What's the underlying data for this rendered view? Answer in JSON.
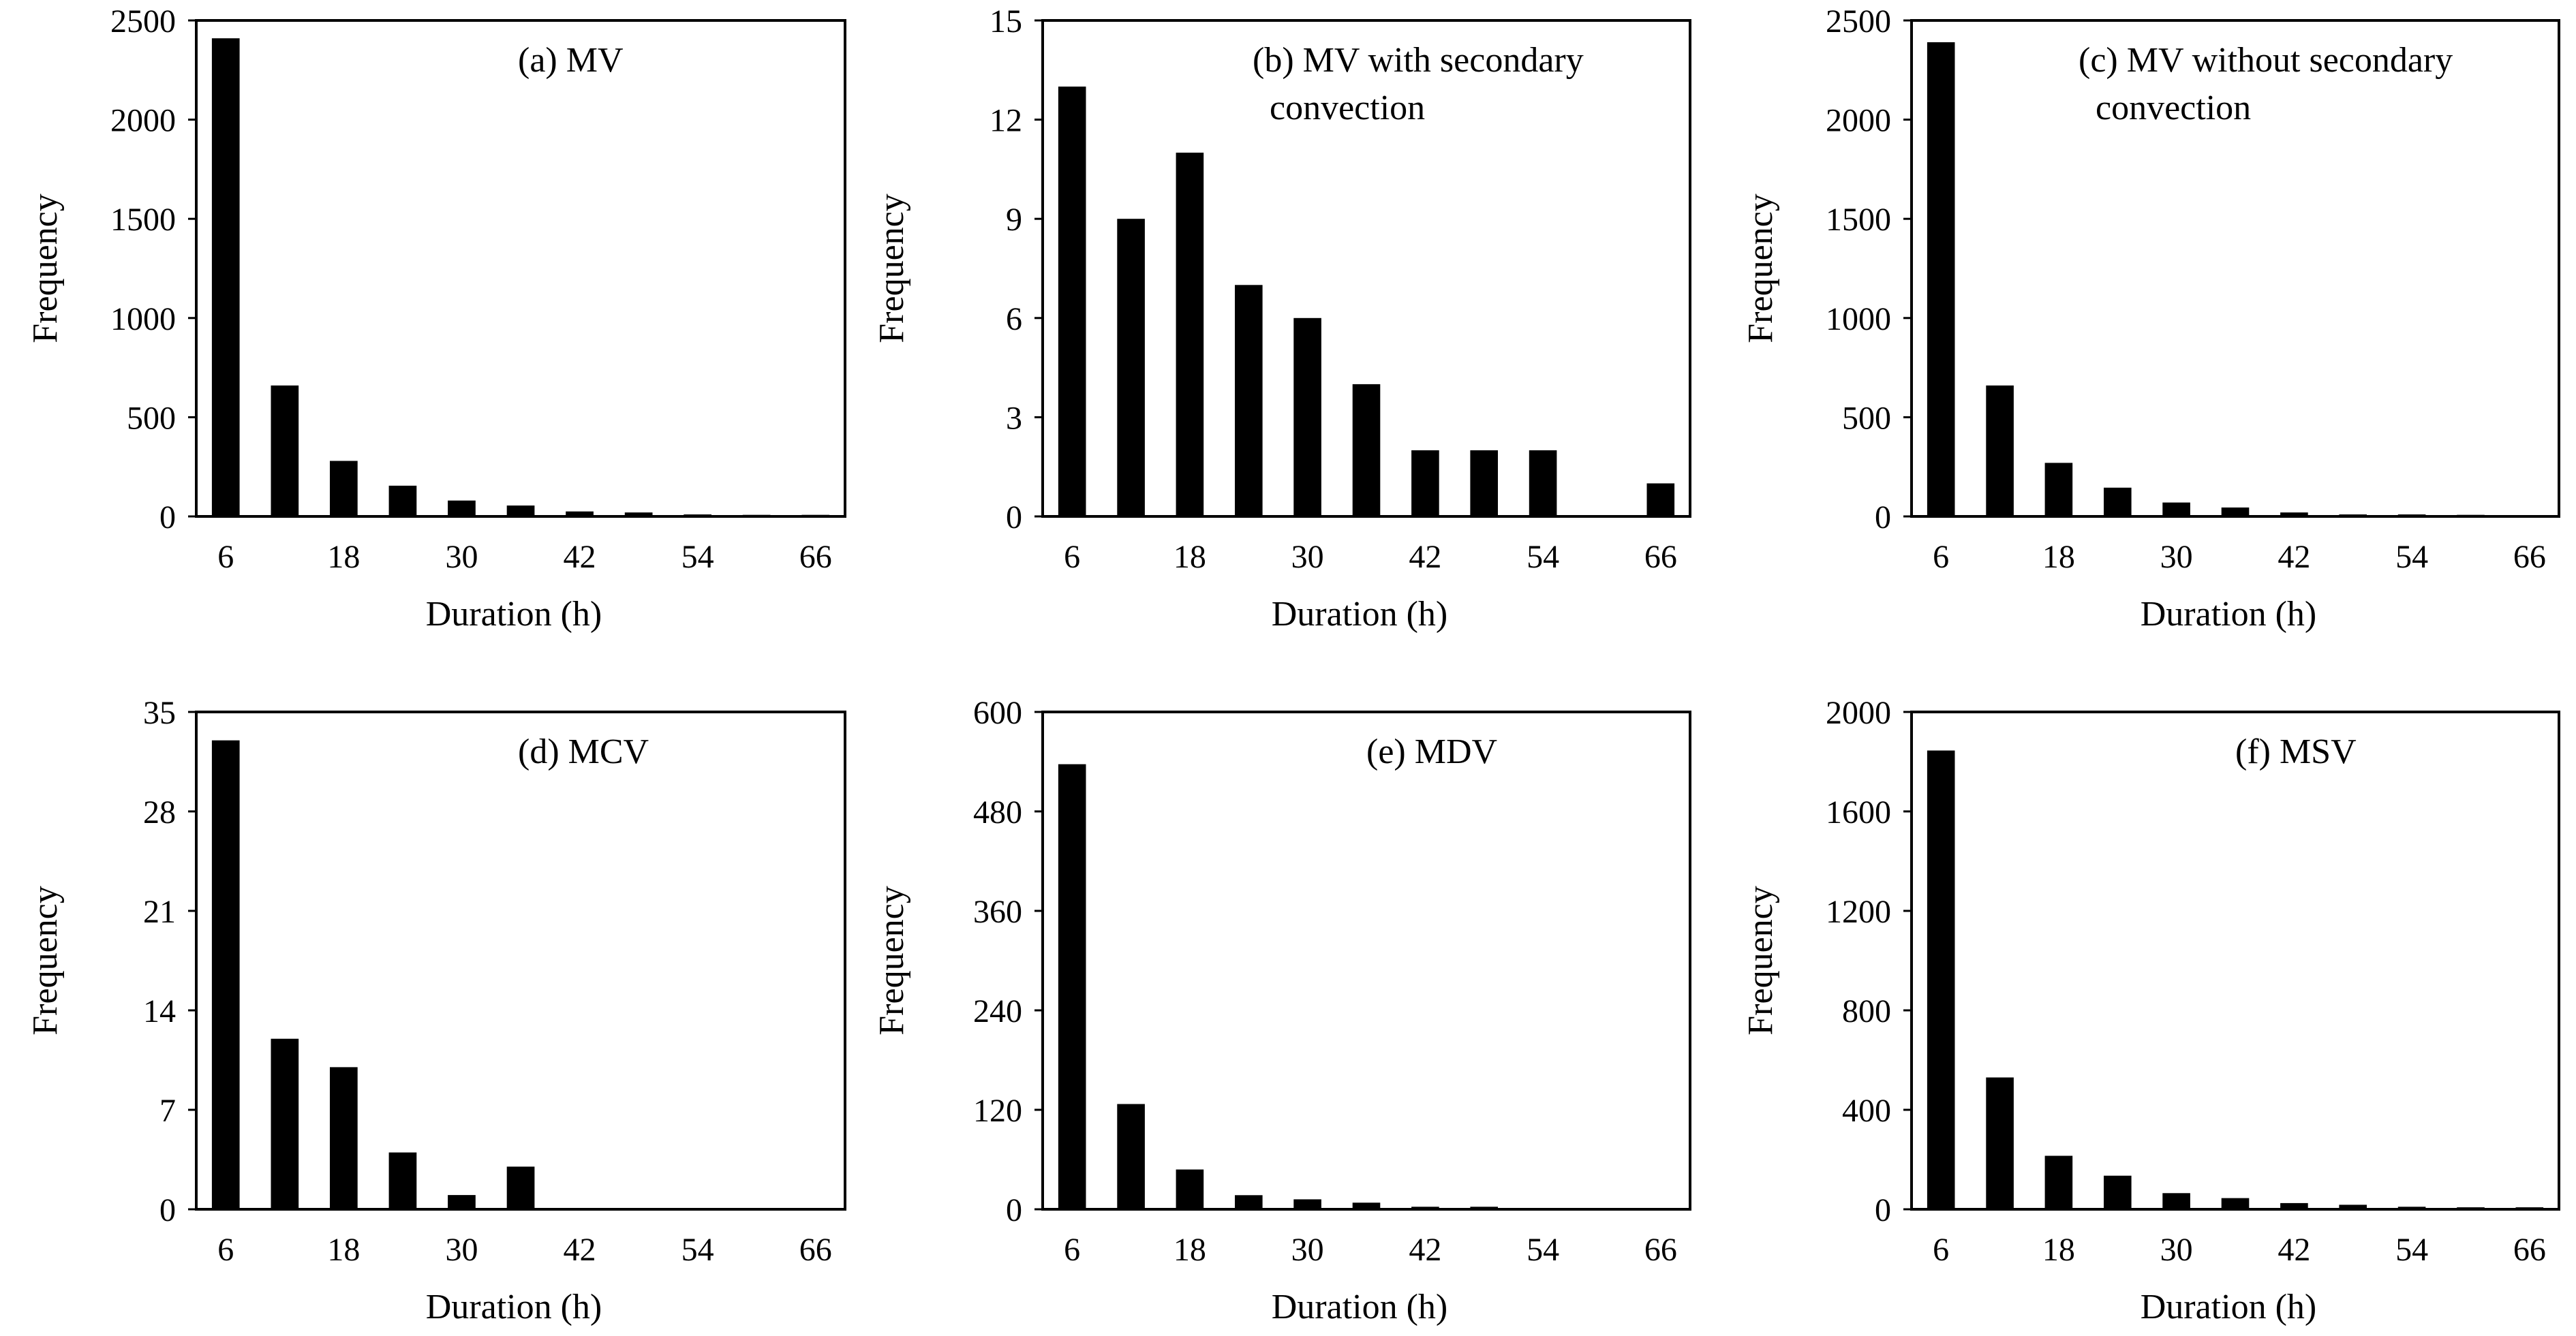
{
  "figure": {
    "background": "#ffffff",
    "bar_color": "#000000"
  },
  "chart_data": [
    {
      "id": "a",
      "type": "bar",
      "title_lines": [
        "(a) MV"
      ],
      "xlabel": "Duration (h)",
      "ylabel": "Frequency",
      "ylim": [
        0,
        2500
      ],
      "yticks": [
        0,
        500,
        1000,
        1500,
        2000,
        2500
      ],
      "categories": [
        6,
        12,
        18,
        24,
        30,
        36,
        42,
        48,
        54,
        60,
        66
      ],
      "xtick_labels": [
        6,
        18,
        30,
        42,
        54,
        66
      ],
      "values": [
        2410,
        660,
        280,
        155,
        80,
        55,
        25,
        20,
        10,
        8,
        8
      ]
    },
    {
      "id": "b",
      "type": "bar",
      "title_lines": [
        "(b) MV with secondary",
        "convection"
      ],
      "xlabel": "Duration (h)",
      "ylabel": "Frequency",
      "ylim": [
        0,
        15
      ],
      "yticks": [
        0,
        3,
        6,
        9,
        12,
        15
      ],
      "categories": [
        6,
        12,
        18,
        24,
        30,
        36,
        42,
        48,
        54,
        60,
        66
      ],
      "xtick_labels": [
        6,
        18,
        30,
        42,
        54,
        66
      ],
      "values": [
        13,
        9,
        11,
        7,
        6,
        4,
        2,
        2,
        2,
        0,
        1
      ]
    },
    {
      "id": "c",
      "type": "bar",
      "title_lines": [
        "(c) MV without secondary",
        "convection"
      ],
      "xlabel": "Duration (h)",
      "ylabel": "Frequency",
      "ylim": [
        0,
        2500
      ],
      "yticks": [
        0,
        500,
        1000,
        1500,
        2000,
        2500
      ],
      "categories": [
        6,
        12,
        18,
        24,
        30,
        36,
        42,
        48,
        54,
        60,
        66
      ],
      "xtick_labels": [
        6,
        18,
        30,
        42,
        54,
        66
      ],
      "values": [
        2390,
        660,
        270,
        145,
        70,
        45,
        20,
        10,
        10,
        8,
        0
      ]
    },
    {
      "id": "d",
      "type": "bar",
      "title_lines": [
        "(d) MCV"
      ],
      "xlabel": "Duration (h)",
      "ylabel": "Frequency",
      "ylim": [
        0,
        35
      ],
      "yticks": [
        0,
        7,
        14,
        21,
        28,
        35
      ],
      "categories": [
        6,
        12,
        18,
        24,
        30,
        36,
        42,
        48,
        54,
        60,
        66
      ],
      "xtick_labels": [
        6,
        18,
        30,
        42,
        54,
        66
      ],
      "values": [
        33,
        12,
        10,
        4,
        1,
        3,
        0,
        0,
        0,
        0,
        0
      ]
    },
    {
      "id": "e",
      "type": "bar",
      "title_lines": [
        "(e) MDV"
      ],
      "xlabel": "Duration (h)",
      "ylabel": "Frequency",
      "ylim": [
        0,
        600
      ],
      "yticks": [
        0,
        120,
        240,
        360,
        480,
        600
      ],
      "categories": [
        6,
        12,
        18,
        24,
        30,
        36,
        42,
        48,
        54,
        60,
        66
      ],
      "xtick_labels": [
        6,
        18,
        30,
        42,
        54,
        66
      ],
      "values": [
        537,
        127,
        48,
        17,
        12,
        8,
        3,
        3,
        0,
        0,
        0
      ]
    },
    {
      "id": "f",
      "type": "bar",
      "title_lines": [
        "(f) MSV"
      ],
      "xlabel": "Duration (h)",
      "ylabel": "Frequency",
      "ylim": [
        0,
        2000
      ],
      "yticks": [
        0,
        400,
        800,
        1200,
        1600,
        2000
      ],
      "categories": [
        6,
        12,
        18,
        24,
        30,
        36,
        42,
        48,
        54,
        60,
        66
      ],
      "xtick_labels": [
        6,
        18,
        30,
        42,
        54,
        66
      ],
      "values": [
        1845,
        530,
        215,
        135,
        65,
        45,
        25,
        18,
        10,
        8,
        8
      ]
    }
  ]
}
